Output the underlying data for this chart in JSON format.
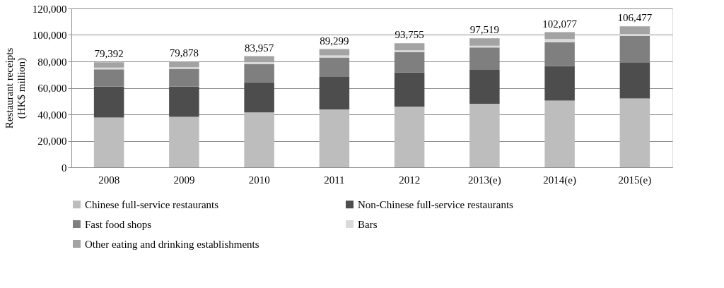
{
  "chart_data": {
    "type": "bar",
    "stacked": true,
    "ylabel": "Restaurant receipts\n(HK$ million)",
    "categories": [
      "2008",
      "2009",
      "2010",
      "2011",
      "2012",
      "2013(e)",
      "2014(e)",
      "2015(e)"
    ],
    "series": [
      {
        "name": "Chinese full-service restaurants",
        "color": "#bdbdbd",
        "values": [
          37600.0,
          38200.0,
          41500.0,
          43700.0,
          45900.0,
          48000.0,
          50400.0,
          52000.0
        ]
      },
      {
        "name": "Non-Chinese full-service restaurants",
        "color": "#4d4d4d",
        "values": [
          23300.0,
          22700.0,
          22700.0,
          24600.0,
          25700.0,
          25600.0,
          26000.0,
          27300.0
        ]
      },
      {
        "name": "Fast food shops",
        "color": "#7f7f7f",
        "values": [
          13100.0,
          13500.0,
          13800.0,
          14700.0,
          15300.0,
          17000.0,
          18200.0,
          20000.0
        ]
      },
      {
        "name": "Bars",
        "color": "#d9d9d9",
        "values": [
          1300.0,
          1200.0,
          1500.0,
          1500.0,
          1500.0,
          1300.0,
          2300.0,
          1400.0
        ]
      },
      {
        "name": "Other eating and drinking establishments",
        "color": "#a3a3a3",
        "values": [
          4092,
          4278,
          4457,
          4799,
          5355,
          5619,
          5177,
          5777
        ]
      }
    ],
    "totals": [
      "79,392",
      "79,878",
      "83,957",
      "89,299",
      "93,755",
      "97,519",
      "102,077",
      "106,477"
    ],
    "ylim": [
      0,
      120000
    ],
    "yticks": [
      0,
      {
        "value": 20000,
        "label": "20,000"
      },
      {
        "value": 40000,
        "label": "40,000"
      },
      {
        "value": 60000,
        "label": "60,000"
      },
      {
        "value": 80000,
        "label": "80,000"
      },
      {
        "value": 100000,
        "label": "100,000"
      },
      {
        "value": 120000,
        "label": "120,000"
      }
    ],
    "grid": "y",
    "legend": "bottom"
  }
}
